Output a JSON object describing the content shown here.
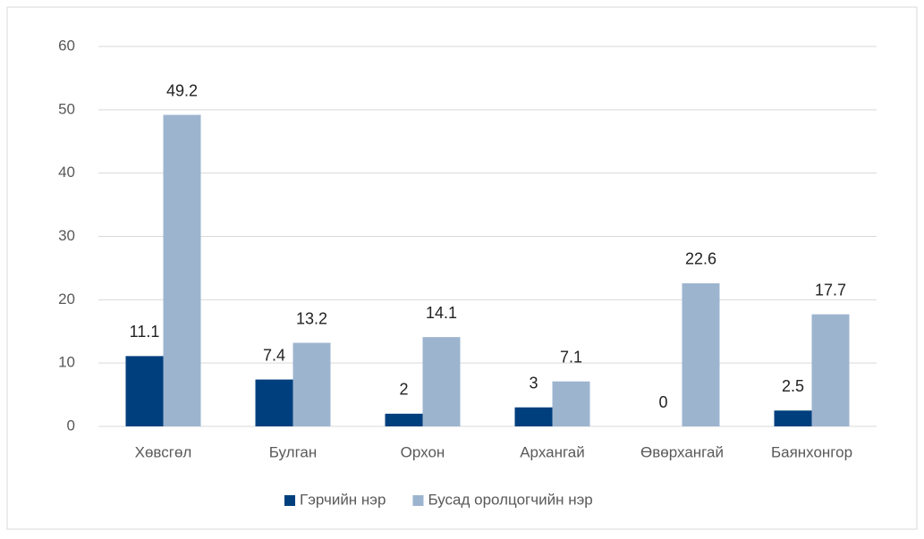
{
  "chart_data": {
    "type": "bar",
    "categories": [
      "Хөвсгөл",
      "Булган",
      "Орхон",
      "Архангай",
      "Өвөрхангай",
      "Баянхонгор"
    ],
    "series": [
      {
        "name": "Гэрчийн нэр",
        "color": "#003f7d",
        "values": [
          11.1,
          7.4,
          2,
          3,
          0,
          2.5
        ]
      },
      {
        "name": "Бусад оролцогчийн нэр",
        "color": "#9db4cf",
        "values": [
          49.2,
          13.2,
          14.1,
          7.1,
          22.6,
          17.7
        ]
      }
    ],
    "ylim": [
      0,
      60
    ],
    "yticks": [
      0,
      10,
      20,
      30,
      40,
      50,
      60
    ],
    "grid": true,
    "legend": "bottom"
  }
}
